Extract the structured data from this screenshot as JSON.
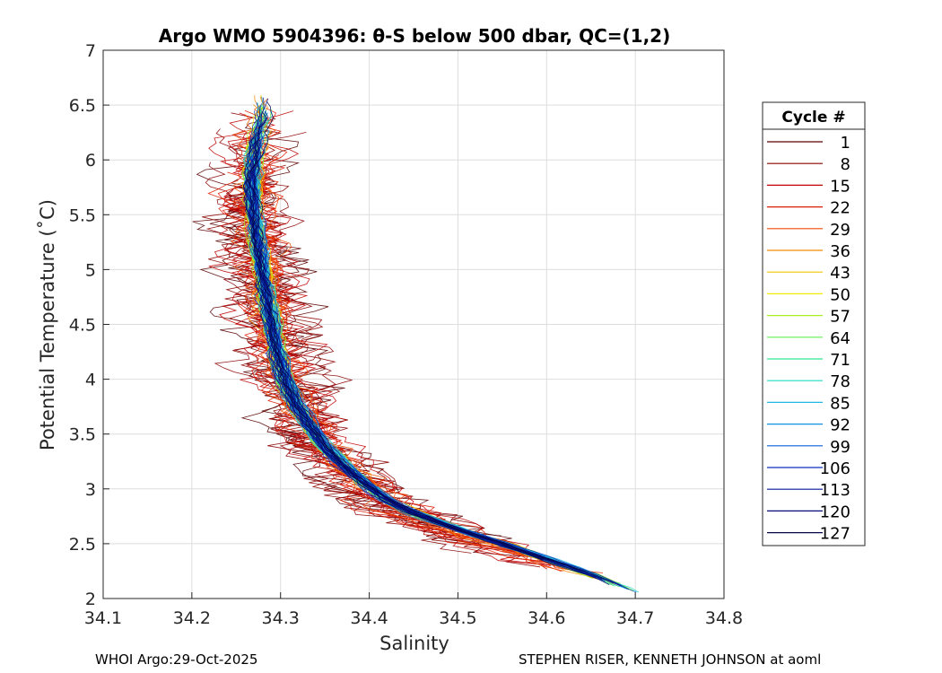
{
  "chart_data": {
    "type": "line",
    "title": "Argo WMO 5904396: θ-S below 500 dbar,  QC=(1,2)",
    "xlabel": "Salinity",
    "ylabel": "Potential Temperature (˚C)",
    "xlim": [
      34.1,
      34.8
    ],
    "ylim": [
      2,
      7
    ],
    "xticks": [
      "34.1",
      "34.2",
      "34.3",
      "34.4",
      "34.5",
      "34.6",
      "34.7",
      "34.8"
    ],
    "yticks": [
      "2",
      "2.5",
      "3",
      "3.5",
      "4",
      "4.5",
      "5",
      "5.5",
      "6",
      "6.5",
      "7"
    ],
    "grid": true,
    "legend_position": "right",
    "legend": {
      "title": "Cycle #",
      "entries": [
        {
          "label": "1",
          "color": "#5a0000"
        },
        {
          "label": "8",
          "color": "#8c0000"
        },
        {
          "label": "15",
          "color": "#c00000"
        },
        {
          "label": "22",
          "color": "#e01c00"
        },
        {
          "label": "29",
          "color": "#f04a00"
        },
        {
          "label": "36",
          "color": "#f58a00"
        },
        {
          "label": "43",
          "color": "#f2c400"
        },
        {
          "label": "50",
          "color": "#f0ee00"
        },
        {
          "label": "57",
          "color": "#a8f020"
        },
        {
          "label": "64",
          "color": "#60f050"
        },
        {
          "label": "71",
          "color": "#30e890"
        },
        {
          "label": "78",
          "color": "#20d8c8"
        },
        {
          "label": "85",
          "color": "#20b8e8"
        },
        {
          "label": "92",
          "color": "#1090e0"
        },
        {
          "label": "99",
          "color": "#0a5fd8"
        },
        {
          "label": "106",
          "color": "#0a30c0"
        },
        {
          "label": "113",
          "color": "#061a98"
        },
        {
          "label": "120",
          "color": "#040e78"
        },
        {
          "label": "127",
          "color": "#02084a"
        }
      ]
    },
    "series_shape": {
      "note": "Mean θ-S curve (salinity, potential temperature) in data units for the profile ensemble",
      "mean_curve": [
        [
          34.7,
          2.05
        ],
        [
          34.65,
          2.22
        ],
        [
          34.6,
          2.36
        ],
        [
          34.55,
          2.5
        ],
        [
          34.5,
          2.63
        ],
        [
          34.45,
          2.78
        ],
        [
          34.42,
          2.9
        ],
        [
          34.395,
          3.05
        ],
        [
          34.37,
          3.22
        ],
        [
          34.348,
          3.4
        ],
        [
          34.33,
          3.6
        ],
        [
          34.316,
          3.8
        ],
        [
          34.305,
          4.0
        ],
        [
          34.296,
          4.25
        ],
        [
          34.29,
          4.5
        ],
        [
          34.284,
          4.75
        ],
        [
          34.279,
          5.0
        ],
        [
          34.274,
          5.25
        ],
        [
          34.27,
          5.5
        ],
        [
          34.268,
          5.75
        ],
        [
          34.27,
          6.0
        ],
        [
          34.274,
          6.2
        ],
        [
          34.28,
          6.4
        ]
      ]
    }
  },
  "footer": {
    "left": "WHOI Argo:29-Oct-2025",
    "right": "STEPHEN RISER, KENNETH JOHNSON at aoml"
  }
}
